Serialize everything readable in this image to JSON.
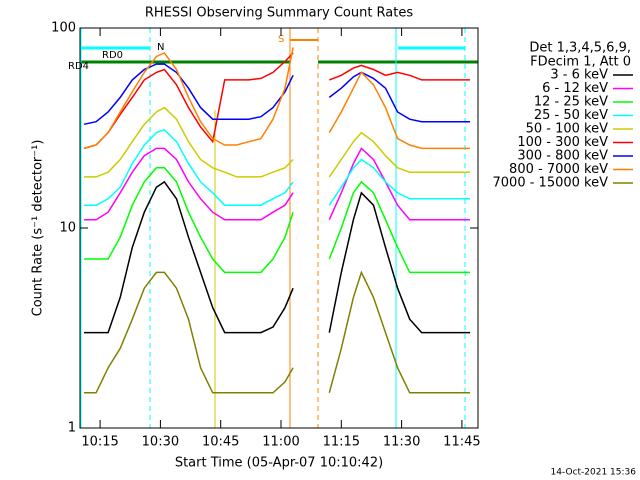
{
  "chart_data": {
    "type": "line",
    "title": "RHESSI Observing Summary Count Rates",
    "x_label": "Start Time (05-Apr-07 10:10:42)",
    "y_label": "Count Rate (s⁻¹ detector⁻¹)",
    "legend_title": [
      "Det 1,3,4,5,6,9,",
      "FDecim 1, Att 0"
    ],
    "annotations": [
      "RD0",
      "RD4",
      "N",
      "S"
    ],
    "timestamp": "14-Oct-2021 15:36",
    "log_y": true,
    "xlim": [
      "10:10",
      "11:49"
    ],
    "xticks": [
      "10:15",
      "10:30",
      "10:45",
      "11:00",
      "11:15",
      "11:30",
      "11:45"
    ],
    "ylim": [
      1,
      100
    ],
    "yticks": [
      1,
      10,
      100
    ],
    "x": [
      "10:11",
      "10:14",
      "10:17",
      "10:20",
      "10:23",
      "10:26",
      "10:29",
      "10:31",
      "10:34",
      "10:37",
      "10:40",
      "10:43",
      "10:46",
      "10:49",
      "10:52",
      "10:55",
      "10:58",
      "11:01",
      "11:03",
      "11:07",
      "11:12",
      "11:15",
      "11:18",
      "11:20",
      "11:23",
      "11:26",
      "11:29",
      "11:32",
      "11:35",
      "11:38",
      "11:41",
      "11:44",
      "11:47"
    ],
    "series": [
      {
        "name": "3 - 6 keV",
        "color": "#000000",
        "values": [
          3,
          3,
          3,
          4.5,
          8,
          12,
          16,
          17,
          14,
          9,
          6,
          4,
          3,
          3,
          3,
          3,
          3.2,
          4,
          5,
          null,
          3,
          6,
          11,
          15,
          13,
          8,
          5,
          3.5,
          3,
          3,
          3,
          3,
          3
        ]
      },
      {
        "name": "6 - 12 keV",
        "color": "#ff00ff",
        "values": [
          11,
          11,
          12,
          15,
          19,
          23,
          25,
          25,
          22,
          17,
          14,
          12,
          11,
          11,
          11,
          11,
          12,
          13,
          15,
          null,
          11,
          15,
          21,
          25,
          22,
          17,
          13,
          11,
          11,
          11,
          11,
          11,
          11
        ]
      },
      {
        "name": "12 - 25 keV",
        "color": "#00ff00",
        "values": [
          7,
          7,
          7,
          9,
          13,
          17,
          20,
          20,
          17,
          12,
          9,
          7,
          6,
          6,
          6,
          6,
          7,
          9,
          12,
          null,
          7,
          10,
          15,
          17,
          15,
          11,
          8,
          6,
          6,
          6,
          6,
          6,
          6
        ]
      },
      {
        "name": "25 - 50 keV",
        "color": "#00ffff",
        "values": [
          13,
          13,
          14,
          16,
          21,
          26,
          30,
          31,
          27,
          21,
          17,
          15,
          13,
          13,
          13,
          13,
          14,
          15,
          17,
          null,
          13,
          16,
          20,
          22,
          20,
          17,
          15,
          14,
          14,
          14,
          14,
          14,
          14
        ]
      },
      {
        "name": "50 - 100 keV",
        "color": "#cccc00",
        "values": [
          18,
          18,
          19,
          22,
          27,
          33,
          38,
          40,
          35,
          27,
          22,
          20,
          19,
          18,
          18,
          18,
          19,
          20,
          22,
          null,
          18,
          22,
          27,
          30,
          27,
          23,
          20,
          19,
          19,
          19,
          19,
          19,
          19
        ]
      },
      {
        "name": "100 - 300 keV",
        "color": "#ff0000",
        "values": [
          25,
          26,
          30,
          37,
          45,
          55,
          60,
          62,
          52,
          40,
          32,
          27,
          55,
          55,
          55,
          56,
          60,
          68,
          75,
          null,
          55,
          58,
          63,
          65,
          62,
          58,
          60,
          58,
          55,
          55,
          55,
          55,
          55
        ]
      },
      {
        "name": "300 - 800 keV",
        "color": "#0000ff",
        "values": [
          33,
          34,
          38,
          45,
          55,
          62,
          66,
          66,
          60,
          50,
          40,
          35,
          35,
          35,
          35,
          36,
          40,
          48,
          58,
          null,
          45,
          50,
          57,
          60,
          56,
          50,
          38,
          35,
          34,
          34,
          34,
          34,
          34
        ]
      },
      {
        "name": "800 - 7000 keV",
        "color": "#ff8000",
        "values": [
          25,
          26,
          30,
          38,
          48,
          60,
          72,
          75,
          62,
          45,
          34,
          28,
          26,
          26,
          27,
          28,
          35,
          50,
          80,
          null,
          30,
          38,
          50,
          60,
          52,
          40,
          28,
          26,
          25,
          25,
          25,
          25,
          25
        ]
      },
      {
        "name": "7000 - 15000 keV",
        "color": "#808000",
        "values": [
          1.5,
          1.5,
          2,
          2.5,
          3.5,
          5,
          6,
          6,
          5,
          3.5,
          2,
          1.5,
          1.5,
          1.5,
          1.5,
          1.5,
          1.5,
          1.7,
          2,
          null,
          1.5,
          2.5,
          4.5,
          6,
          4.5,
          3,
          2,
          1.5,
          1.5,
          1.5,
          1.5,
          1.5,
          1.5
        ]
      }
    ]
  }
}
